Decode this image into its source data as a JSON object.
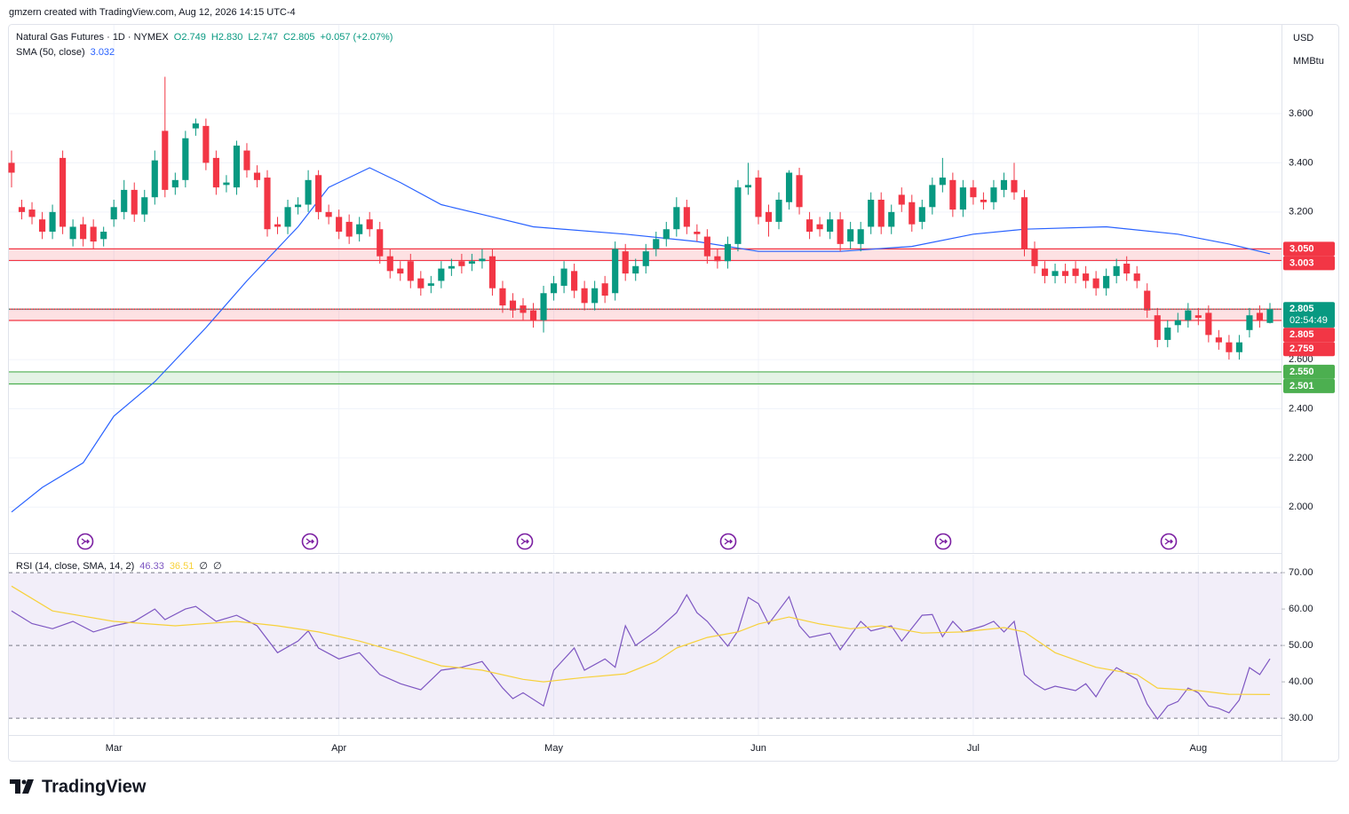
{
  "header": {
    "attribution": "gmzern created with TradingView.com, Aug 12, 2026 14:15 UTC-4"
  },
  "logo": "TradingView",
  "chart_data": [
    {
      "type": "candlestick",
      "title": "Natural Gas Futures · 1D · NYMEX",
      "ohlc_legend": [
        "O2.749",
        "H2.830",
        "L2.747",
        "C2.805",
        "+0.057 (+2.07%)"
      ],
      "currency": "USD",
      "unit": "MMBtu",
      "colors": {
        "up": "#089981",
        "down": "#f23645"
      },
      "open": [
        3.4,
        3.22,
        3.21,
        3.17,
        3.12,
        3.42,
        3.09,
        3.15,
        3.14,
        3.09,
        3.17,
        3.2,
        3.29,
        3.19,
        3.26,
        3.53,
        3.3,
        3.33,
        3.54,
        3.55,
        3.42,
        3.31,
        3.3,
        3.45,
        3.36,
        3.34,
        3.15,
        3.14,
        3.22,
        3.23,
        3.35,
        3.2,
        3.18,
        3.16,
        3.11,
        3.17,
        3.13,
        3.02,
        2.97,
        3.0,
        2.93,
        2.9,
        2.92,
        2.97,
        3.0,
        2.99,
        3.0,
        3.02,
        2.89,
        2.84,
        2.82,
        2.8,
        2.76,
        2.87,
        2.9,
        2.96,
        2.89,
        2.83,
        2.91,
        2.87,
        3.04,
        2.95,
        2.98,
        3.05,
        3.09,
        3.13,
        3.22,
        3.12,
        3.1,
        3.02,
        3.0,
        3.07,
        3.3,
        3.34,
        3.2,
        3.16,
        3.24,
        3.35,
        3.17,
        3.15,
        3.12,
        3.17,
        3.08,
        3.07,
        3.14,
        3.25,
        3.14,
        3.27,
        3.24,
        3.16,
        3.22,
        3.31,
        3.33,
        3.21,
        3.3,
        3.25,
        3.24,
        3.29,
        3.33,
        3.26,
        3.05,
        2.97,
        2.94,
        2.96,
        2.97,
        2.95,
        2.93,
        2.89,
        2.94,
        2.99,
        2.95,
        2.88,
        2.78,
        2.68,
        2.74,
        2.76,
        2.78,
        2.79,
        2.69,
        2.67,
        2.63,
        2.72,
        2.79,
        2.749
      ],
      "high": [
        3.45,
        3.25,
        3.24,
        3.2,
        3.23,
        3.45,
        3.17,
        3.18,
        3.17,
        3.14,
        3.25,
        3.33,
        3.32,
        3.29,
        3.45,
        3.75,
        3.36,
        3.53,
        3.58,
        3.58,
        3.45,
        3.35,
        3.49,
        3.48,
        3.39,
        3.37,
        3.18,
        3.25,
        3.26,
        3.37,
        3.37,
        3.23,
        3.21,
        3.19,
        3.18,
        3.2,
        3.16,
        3.05,
        3.0,
        3.03,
        2.96,
        2.94,
        3.0,
        3.01,
        3.03,
        3.03,
        3.05,
        3.05,
        2.92,
        2.87,
        2.85,
        2.83,
        2.9,
        2.94,
        3.0,
        2.99,
        2.92,
        2.92,
        2.94,
        3.08,
        3.07,
        3.01,
        3.07,
        3.12,
        3.16,
        3.26,
        3.25,
        3.15,
        3.13,
        3.05,
        3.1,
        3.33,
        3.4,
        3.37,
        3.23,
        3.28,
        3.37,
        3.38,
        3.2,
        3.18,
        3.2,
        3.2,
        3.16,
        3.16,
        3.28,
        3.28,
        3.23,
        3.3,
        3.27,
        3.25,
        3.34,
        3.42,
        3.36,
        3.33,
        3.33,
        3.28,
        3.33,
        3.36,
        3.4,
        3.29,
        3.08,
        3.0,
        2.99,
        2.99,
        3.0,
        2.98,
        2.96,
        2.97,
        3.01,
        3.02,
        2.98,
        2.91,
        2.81,
        2.76,
        2.79,
        2.83,
        2.81,
        2.82,
        2.72,
        2.7,
        2.7,
        2.81,
        2.82,
        2.83
      ],
      "low": [
        3.3,
        3.17,
        3.15,
        3.09,
        3.09,
        3.11,
        3.06,
        3.06,
        3.05,
        3.06,
        3.14,
        3.17,
        3.16,
        3.16,
        3.23,
        3.26,
        3.27,
        3.3,
        3.51,
        3.37,
        3.27,
        3.28,
        3.27,
        3.34,
        3.3,
        3.1,
        3.11,
        3.11,
        3.19,
        3.2,
        3.17,
        3.15,
        3.09,
        3.07,
        3.08,
        3.1,
        2.99,
        2.93,
        2.92,
        2.89,
        2.86,
        2.87,
        2.89,
        2.94,
        2.95,
        2.96,
        2.97,
        2.86,
        2.79,
        2.77,
        2.76,
        2.73,
        2.71,
        2.84,
        2.87,
        2.85,
        2.8,
        2.8,
        2.83,
        2.84,
        2.92,
        2.92,
        2.95,
        3.02,
        3.06,
        3.1,
        3.11,
        3.08,
        2.99,
        2.97,
        2.97,
        3.04,
        3.27,
        3.15,
        3.1,
        3.13,
        3.21,
        3.19,
        3.09,
        3.1,
        3.09,
        3.04,
        3.05,
        3.04,
        3.11,
        3.11,
        3.11,
        3.2,
        3.12,
        3.13,
        3.19,
        3.28,
        3.18,
        3.18,
        3.23,
        3.21,
        3.21,
        3.26,
        3.25,
        3.02,
        2.95,
        2.91,
        2.91,
        2.91,
        2.91,
        2.89,
        2.86,
        2.86,
        2.91,
        2.92,
        2.89,
        2.77,
        2.65,
        2.65,
        2.71,
        2.73,
        2.74,
        2.67,
        2.64,
        2.6,
        2.6,
        2.69,
        2.73,
        2.747
      ],
      "close": [
        3.36,
        3.2,
        3.18,
        3.12,
        3.2,
        3.14,
        3.14,
        3.09,
        3.08,
        3.12,
        3.22,
        3.29,
        3.19,
        3.26,
        3.41,
        3.29,
        3.33,
        3.5,
        3.56,
        3.4,
        3.3,
        3.32,
        3.47,
        3.37,
        3.33,
        3.13,
        3.14,
        3.22,
        3.23,
        3.33,
        3.2,
        3.18,
        3.12,
        3.1,
        3.15,
        3.13,
        3.02,
        2.96,
        2.95,
        2.92,
        2.89,
        2.91,
        2.97,
        2.98,
        2.98,
        3.0,
        3.01,
        2.89,
        2.82,
        2.8,
        2.79,
        2.76,
        2.87,
        2.91,
        2.97,
        2.88,
        2.83,
        2.89,
        2.86,
        3.05,
        2.95,
        2.98,
        3.04,
        3.09,
        3.13,
        3.22,
        3.14,
        3.11,
        3.02,
        3.0,
        3.07,
        3.3,
        3.31,
        3.18,
        3.16,
        3.25,
        3.36,
        3.22,
        3.12,
        3.13,
        3.17,
        3.07,
        3.13,
        3.13,
        3.25,
        3.14,
        3.2,
        3.23,
        3.15,
        3.22,
        3.31,
        3.34,
        3.21,
        3.3,
        3.26,
        3.24,
        3.3,
        3.33,
        3.28,
        3.05,
        2.98,
        2.94,
        2.96,
        2.94,
        2.94,
        2.92,
        2.89,
        2.94,
        2.98,
        2.95,
        2.92,
        2.8,
        2.68,
        2.73,
        2.76,
        2.8,
        2.77,
        2.7,
        2.67,
        2.63,
        2.67,
        2.78,
        2.76,
        2.805
      ],
      "xlim": [
        -0.26,
        124.13
      ],
      "xticks": [
        {
          "value": 10,
          "label": "Mar"
        },
        {
          "value": 32,
          "label": "Apr"
        },
        {
          "value": 53,
          "label": "May"
        },
        {
          "value": 73,
          "label": "Jun"
        },
        {
          "value": 94,
          "label": "Jul"
        },
        {
          "value": 116,
          "label": "Aug"
        }
      ],
      "ylim": [
        1.817,
        3.961
      ],
      "yticks": [
        {
          "value": 2.0,
          "label": "2.000"
        },
        {
          "value": 2.2,
          "label": "2.200"
        },
        {
          "value": 2.4,
          "label": "2.400"
        },
        {
          "value": 2.6,
          "label": "2.600"
        },
        {
          "value": 2.8,
          "label": "2.800"
        },
        {
          "value": 3.0,
          "label": "3.000"
        },
        {
          "value": 3.2,
          "label": "3.200"
        },
        {
          "value": 3.4,
          "label": "3.400"
        },
        {
          "value": 3.6,
          "label": "3.600"
        }
      ],
      "grid": true,
      "sma": {
        "title": "SMA (50, close)",
        "value_label": "3.032",
        "color": "#2962ff",
        "x": [
          0,
          3,
          7,
          10,
          14,
          19,
          23,
          28,
          31,
          35,
          38,
          42,
          46,
          51,
          60,
          67,
          73,
          81,
          88,
          94,
          99,
          107,
          114,
          119,
          123
        ],
        "values": [
          1.98,
          2.08,
          2.18,
          2.37,
          2.51,
          2.73,
          2.92,
          3.14,
          3.3,
          3.38,
          3.32,
          3.23,
          3.19,
          3.14,
          3.11,
          3.08,
          3.04,
          3.04,
          3.06,
          3.11,
          3.13,
          3.14,
          3.11,
          3.07,
          3.03
        ]
      },
      "zones": [
        {
          "top": {
            "value": 3.05,
            "label": "3.050"
          },
          "bottom": {
            "value": 3.003,
            "label": "3.003"
          },
          "color": "#f23645"
        },
        {
          "top": {
            "value": 2.805,
            "label": "2.805"
          },
          "bottom": {
            "value": 2.759,
            "label": "2.759"
          },
          "color": "#f23645"
        },
        {
          "top": {
            "value": 2.55,
            "label": "2.550"
          },
          "bottom": {
            "value": 2.501,
            "label": "2.501"
          },
          "color": "#4caf50"
        }
      ],
      "last_price": {
        "value": 2.805,
        "label": "2.805",
        "countdown": "02:54:49",
        "color": "#089981"
      }
    },
    {
      "type": "line",
      "title": "RSI (14, close, SMA, 14, 2)",
      "legend_values": [
        "46.33",
        "36.51",
        "∅",
        "∅"
      ],
      "series": [
        {
          "color": "#7e57c2",
          "x": [
            0,
            2,
            4,
            6,
            8,
            10,
            12,
            14,
            15,
            17,
            18,
            20,
            22,
            24,
            26,
            28,
            29,
            30,
            32,
            34,
            36,
            38,
            40,
            42,
            44,
            46,
            48,
            49,
            50,
            52,
            53,
            55,
            56,
            58,
            59,
            60,
            61,
            63,
            65,
            66,
            67,
            68,
            70,
            71,
            72,
            73,
            74,
            76,
            77,
            78,
            80,
            81,
            83,
            84,
            86,
            87,
            89,
            90,
            91,
            92,
            93,
            95,
            96,
            97,
            98,
            99,
            100,
            101,
            102,
            104,
            105,
            106,
            107,
            108,
            110,
            111,
            112,
            113,
            114,
            115,
            116,
            117,
            118,
            119,
            120,
            121,
            122,
            123
          ],
          "values": [
            59.5,
            56,
            54.6,
            56.6,
            53.7,
            55.4,
            56.6,
            60,
            57.1,
            60,
            60.7,
            56.6,
            58.3,
            55.4,
            48,
            51.2,
            54,
            49.3,
            46.3,
            48,
            42,
            39.5,
            37.8,
            43.2,
            44,
            45.6,
            38.3,
            35.4,
            37,
            33.4,
            43.2,
            49.3,
            43.2,
            46.3,
            44,
            55.4,
            50,
            54,
            59,
            63.9,
            59,
            56.6,
            49.8,
            54,
            63.2,
            61.5,
            55.9,
            63.4,
            55.4,
            52.2,
            53.4,
            48.8,
            56.6,
            54,
            55.4,
            51.2,
            58.3,
            58.5,
            52.4,
            56.6,
            53.7,
            55.4,
            56.6,
            53.7,
            56.6,
            42,
            39.5,
            37.8,
            38.8,
            37.6,
            39.5,
            35.9,
            40.7,
            43.9,
            40.7,
            33.9,
            29.8,
            33.4,
            34.6,
            38.3,
            37,
            33.4,
            32.7,
            31.5,
            35,
            43.9,
            42,
            46.33
          ]
        },
        {
          "color": "#f7d13a",
          "x": [
            0,
            4,
            10,
            16,
            22,
            26,
            30,
            34,
            38,
            42,
            46,
            50,
            52,
            56,
            60,
            63,
            65,
            68,
            71,
            73,
            76,
            79,
            82,
            85,
            89,
            93,
            97,
            99,
            102,
            106,
            110,
            112,
            116,
            119,
            123
          ],
          "values": [
            66.3,
            59.5,
            56.6,
            55.4,
            56.6,
            55.4,
            53.7,
            51.2,
            48,
            44.4,
            43.2,
            40.7,
            40,
            41.2,
            42.2,
            45.6,
            49.3,
            52.2,
            53.7,
            55.9,
            57.8,
            55.9,
            54.6,
            55.4,
            53.4,
            53.7,
            54.9,
            53.7,
            48,
            44,
            42,
            38.3,
            37.6,
            36.6,
            36.51
          ]
        }
      ],
      "ylim": [
        25.4,
        74.9
      ],
      "yticks": [
        {
          "value": 30,
          "label": "30.00"
        },
        {
          "value": 40,
          "label": "40.00"
        },
        {
          "value": 50,
          "label": "50.00"
        },
        {
          "value": 60,
          "label": "60.00"
        },
        {
          "value": 70,
          "label": "70.00"
        }
      ],
      "band": {
        "lower": 30,
        "middle": 50,
        "upper": 70,
        "color": "#7e57c2"
      }
    }
  ]
}
